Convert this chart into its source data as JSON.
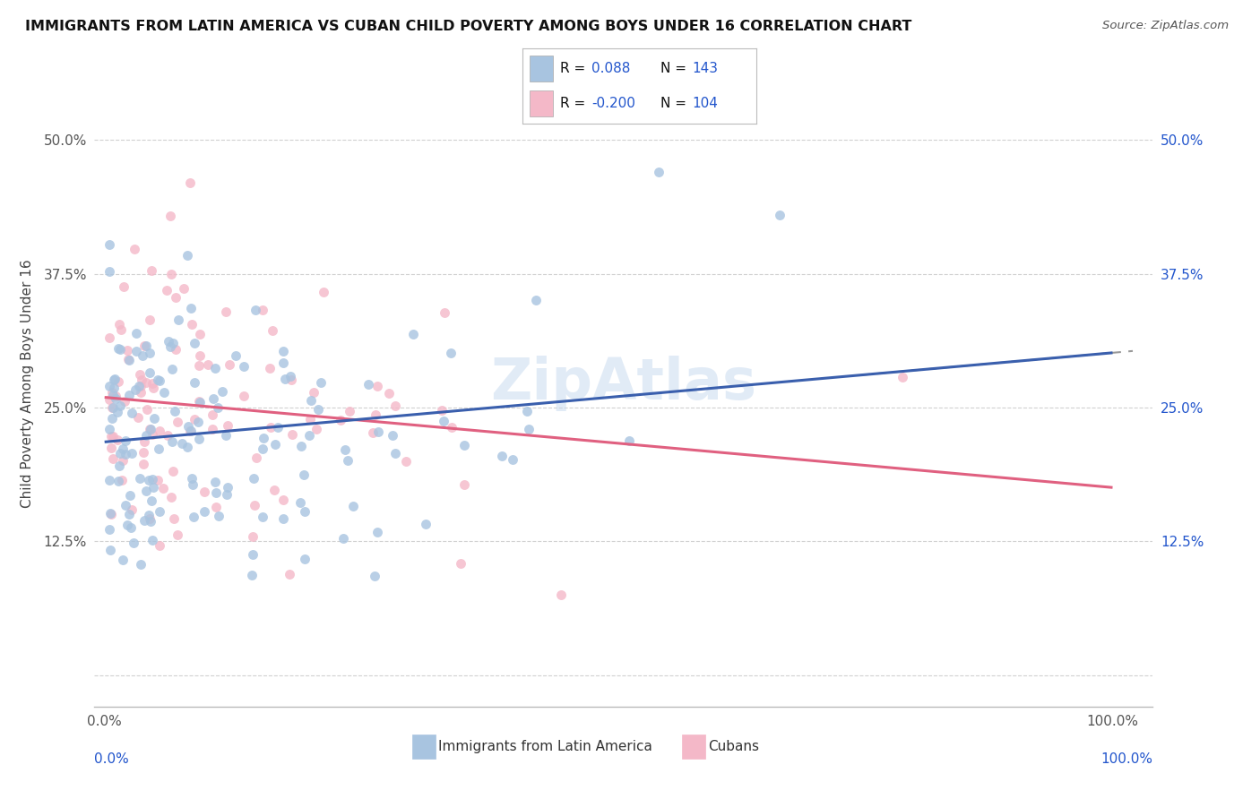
{
  "title": "IMMIGRANTS FROM LATIN AMERICA VS CUBAN CHILD POVERTY AMONG BOYS UNDER 16 CORRELATION CHART",
  "source": "Source: ZipAtlas.com",
  "ylabel": "Child Poverty Among Boys Under 16",
  "series1_name": "Immigrants from Latin America",
  "series1_r": "0.088",
  "series1_n": "143",
  "series1_color": "#a8c4e0",
  "series1_line_color": "#3a5fad",
  "series2_name": "Cubans",
  "series2_r": "-0.200",
  "series2_n": "104",
  "series2_color": "#f4b8c8",
  "series2_line_color": "#e06080",
  "background_color": "#ffffff",
  "grid_color": "#cccccc",
  "legend_text_color": "#111111",
  "legend_value_color": "#2255cc",
  "right_tick_color": "#2255cc",
  "watermark_color": "#c5d8ee",
  "watermark_alpha": 0.5
}
